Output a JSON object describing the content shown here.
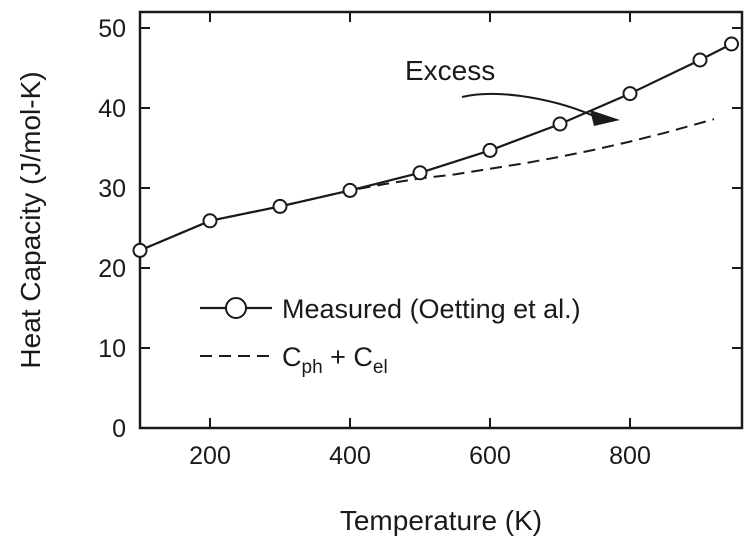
{
  "chart_data": {
    "type": "line",
    "xlabel": "Temperature (K)",
    "ylabel": "Heat Capacity (J/mol-K)",
    "xlim": [
      100,
      960
    ],
    "ylim": [
      0,
      52
    ],
    "x_ticks": [
      200,
      400,
      600,
      800
    ],
    "y_ticks": [
      0,
      10,
      20,
      30,
      40,
      50
    ],
    "grid": false,
    "legend_position": "lower-right",
    "series": [
      {
        "name": "Measured (Oetting et al.)",
        "style": "solid-line-open-circles",
        "x": [
          100,
          200,
          300,
          400,
          500,
          600,
          700,
          800,
          900,
          945
        ],
        "y": [
          22.2,
          25.9,
          27.7,
          29.7,
          31.9,
          34.7,
          38.0,
          41.8,
          46.0,
          48.0
        ]
      },
      {
        "name_main": "C",
        "name_sub1": "ph",
        "name_mid": " + C",
        "name_sub2": "el",
        "style": "dashed",
        "x": [
          100,
          200,
          300,
          400,
          450,
          500,
          550,
          600,
          650,
          700,
          750,
          800,
          850,
          920
        ],
        "y": [
          22.2,
          25.9,
          27.7,
          29.7,
          30.5,
          31.2,
          31.7,
          32.4,
          33.1,
          33.9,
          34.8,
          35.8,
          36.9,
          38.6
        ]
      }
    ],
    "annotation": {
      "text": "Excess",
      "points_to": {
        "x": 760,
        "y": 39.5
      }
    }
  },
  "legend": {
    "measured_label": "Measured (Oetting et al.)"
  }
}
